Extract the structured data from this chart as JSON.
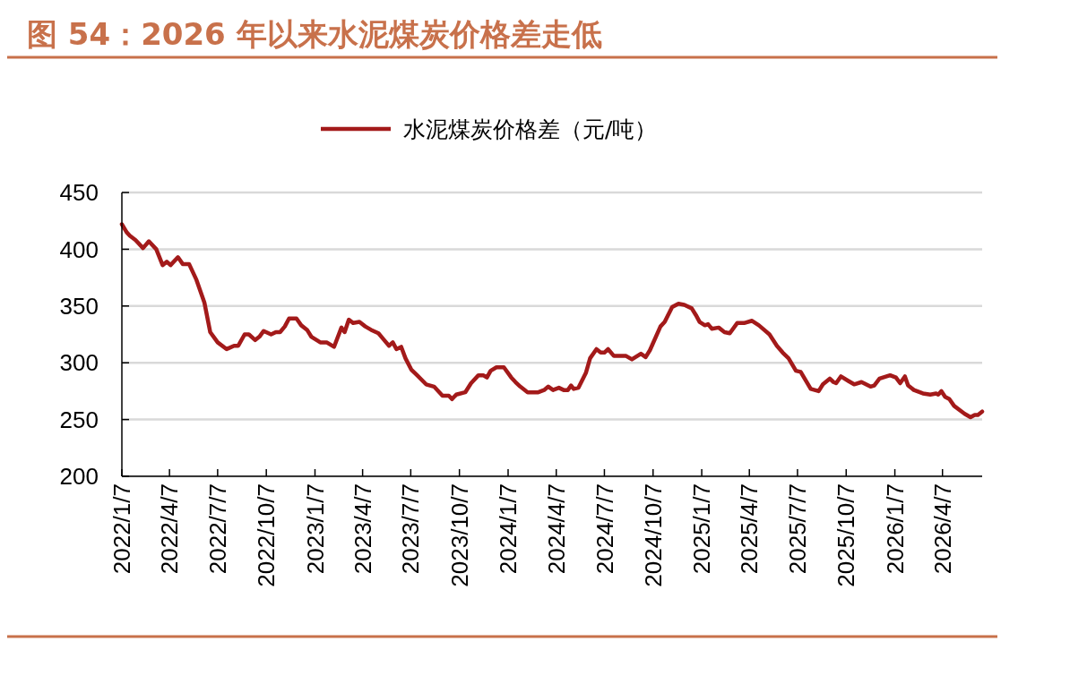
{
  "chart_data": {
    "type": "line",
    "title": "图 54：2026 年以来水泥煤炭价格差走低",
    "x": [
      "2022-01-07",
      "2022-01-16",
      "2022-01-22",
      "2022-02-02",
      "2022-02-16",
      "2022-02-27",
      "2022-03-13",
      "2022-03-25",
      "2022-04-02",
      "2022-04-09",
      "2022-04-23",
      "2022-05-02",
      "2022-05-14",
      "2022-05-28",
      "2022-06-12",
      "2022-06-23",
      "2022-07-07",
      "2022-07-24",
      "2022-08-07",
      "2022-08-15",
      "2022-08-27",
      "2022-09-04",
      "2022-09-16",
      "2022-09-24",
      "2022-10-02",
      "2022-10-16",
      "2022-10-25",
      "2022-11-02",
      "2022-11-11",
      "2022-11-19",
      "2022-12-03",
      "2022-12-12",
      "2022-12-23",
      "2022-12-31",
      "2023-01-17",
      "2023-01-29",
      "2023-02-12",
      "2023-02-26",
      "2023-03-04",
      "2023-03-12",
      "2023-03-20",
      "2023-04-01",
      "2023-04-12",
      "2023-04-23",
      "2023-05-07",
      "2023-05-16",
      "2023-05-27",
      "2023-06-03",
      "2023-06-10",
      "2023-06-19",
      "2023-06-27",
      "2023-07-08",
      "2023-07-19",
      "2023-08-05",
      "2023-08-20",
      "2023-09-05",
      "2023-09-17",
      "2023-09-23",
      "2023-10-01",
      "2023-10-18",
      "2023-10-29",
      "2023-11-12",
      "2023-11-21",
      "2023-11-28",
      "2023-12-05",
      "2023-12-16",
      "2023-12-30",
      "2024-01-13",
      "2024-01-21",
      "2024-01-30",
      "2024-02-13",
      "2024-03-04",
      "2024-03-15",
      "2024-03-23",
      "2024-04-01",
      "2024-04-12",
      "2024-04-21",
      "2024-04-29",
      "2024-05-05",
      "2024-05-10",
      "2024-05-19",
      "2024-06-02",
      "2024-06-10",
      "2024-06-22",
      "2024-06-30",
      "2024-07-07",
      "2024-07-14",
      "2024-07-25",
      "2024-08-17",
      "2024-08-28",
      "2024-09-14",
      "2024-09-23",
      "2024-10-01",
      "2024-10-21",
      "2024-10-29",
      "2024-11-12",
      "2024-11-24",
      "2024-12-05",
      "2024-12-19",
      "2024-12-27",
      "2025-01-03",
      "2025-01-13",
      "2025-01-19",
      "2025-01-26",
      "2025-02-08",
      "2025-02-19",
      "2025-03-01",
      "2025-03-15",
      "2025-03-28",
      "2025-04-12",
      "2025-04-25",
      "2025-05-15",
      "2025-05-29",
      "2025-06-09",
      "2025-06-20",
      "2025-07-04",
      "2025-07-13",
      "2025-08-01",
      "2025-08-16",
      "2025-08-24",
      "2025-09-06",
      "2025-09-13",
      "2025-09-18",
      "2025-09-27",
      "2025-10-11",
      "2025-10-22",
      "2025-11-05",
      "2025-11-22",
      "2025-11-29",
      "2025-12-09",
      "2025-12-29",
      "2026-01-09",
      "2026-01-17",
      "2026-01-26",
      "2026-02-01",
      "2026-02-12",
      "2026-03-01",
      "2026-03-15",
      "2026-03-26",
      "2026-03-30",
      "2026-04-05",
      "2026-04-12",
      "2026-04-20",
      "2026-04-29",
      "2026-05-19",
      "2026-05-30",
      "2026-06-07",
      "2026-06-13",
      "2026-06-21"
    ],
    "series": [
      {
        "name": "水泥煤炭价格差（元/吨）",
        "color": "#a31a1a",
        "values": [
          422,
          415,
          412,
          408,
          401,
          407,
          400,
          386,
          389,
          386,
          393,
          387,
          387,
          373,
          353,
          327,
          318,
          312,
          315,
          315,
          325,
          325,
          320,
          323,
          328,
          325,
          327,
          327,
          332,
          339,
          339,
          333,
          329,
          323,
          318,
          318,
          314,
          331,
          327,
          338,
          335,
          336,
          332,
          329,
          326,
          321,
          315,
          318,
          312,
          314,
          304,
          294,
          289,
          281,
          279,
          271,
          271,
          268,
          272,
          274,
          282,
          289,
          289,
          287,
          293,
          296,
          296,
          287,
          283,
          279,
          274,
          274,
          276,
          279,
          276,
          278,
          276,
          276,
          280,
          277,
          278,
          291,
          304,
          312,
          309,
          309,
          312,
          306,
          306,
          303,
          308,
          305,
          311,
          332,
          336,
          349,
          352,
          351,
          348,
          342,
          336,
          333,
          334,
          330,
          331,
          327,
          326,
          335,
          335,
          337,
          333,
          325,
          315,
          309,
          304,
          293,
          292,
          277,
          275,
          281,
          286,
          283,
          282,
          288,
          284,
          281,
          283,
          279,
          280,
          286,
          289,
          287,
          282,
          288,
          280,
          276,
          273,
          272,
          273,
          272,
          275,
          270,
          268,
          262,
          255,
          252,
          254,
          254,
          257
        ]
      }
    ],
    "xlim": [
      "2022-01-07",
      "2026-06-21"
    ],
    "xticks": [
      {
        "value": "2022-01-07",
        "label": "2022/1/7"
      },
      {
        "value": "2022-04-07",
        "label": "2022/4/7"
      },
      {
        "value": "2022-07-07",
        "label": "2022/7/7"
      },
      {
        "value": "2022-10-07",
        "label": "2022/10/7"
      },
      {
        "value": "2023-01-07",
        "label": "2023/1/7"
      },
      {
        "value": "2023-04-07",
        "label": "2023/4/7"
      },
      {
        "value": "2023-07-07",
        "label": "2023/7/7"
      },
      {
        "value": "2023-10-07",
        "label": "2023/10/7"
      },
      {
        "value": "2024-01-07",
        "label": "2024/1/7"
      },
      {
        "value": "2024-04-07",
        "label": "2024/4/7"
      },
      {
        "value": "2024-07-07",
        "label": "2024/7/7"
      },
      {
        "value": "2024-10-07",
        "label": "2024/10/7"
      },
      {
        "value": "2025-01-07",
        "label": "2025/1/7"
      },
      {
        "value": "2025-04-07",
        "label": "2025/4/7"
      },
      {
        "value": "2025-07-07",
        "label": "2025/7/7"
      },
      {
        "value": "2025-10-07",
        "label": "2025/10/7"
      },
      {
        "value": "2026-01-07",
        "label": "2026/1/7"
      },
      {
        "value": "2026-04-07",
        "label": "2026/4/7"
      }
    ],
    "ylim": [
      200,
      450
    ],
    "yticks": [
      200,
      250,
      300,
      350,
      400,
      450
    ],
    "grid": "y",
    "legend": "top",
    "marker": "none",
    "line_style": "solid"
  }
}
